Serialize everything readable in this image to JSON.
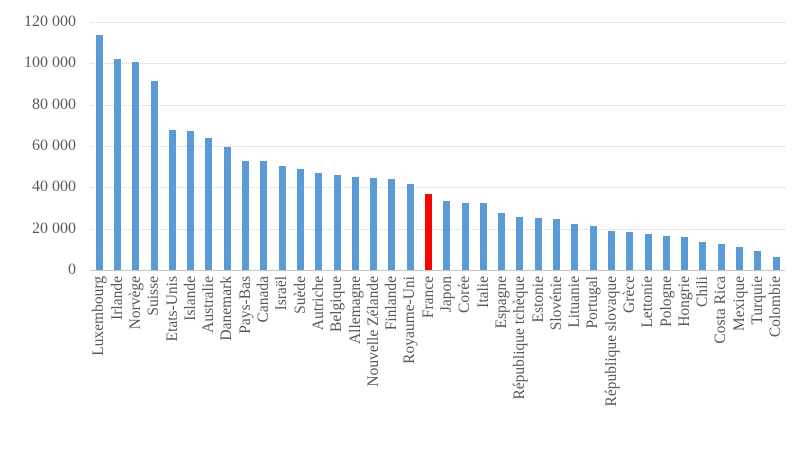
{
  "chart_data": {
    "type": "bar",
    "title": "",
    "xlabel": "",
    "ylabel": "",
    "legend": false,
    "grid": true,
    "background": "#FFFFFF",
    "text_color": "#595959",
    "gridline_color": "#D2D2D2",
    "axis_line_color": "#C9C9C9",
    "bar_color": "#5B9BD5",
    "highlight": {
      "category": "France",
      "color": "#FF0000"
    },
    "ylim": [
      0,
      120000
    ],
    "ytick_step": 20000,
    "ytick_labels": [
      "120 000",
      "100 000",
      "80 000",
      "60 000",
      "40 000",
      "20 000",
      "0"
    ],
    "categories": [
      "Luxembourg",
      "Irlande",
      "Norvège",
      "Suisse",
      "Etats-Unis",
      "Islande",
      "Australie",
      "Danemark",
      "Pays-Bas",
      "Canada",
      "Israël",
      "Suède",
      "Autriche",
      "Belgique",
      "Allemagne",
      "Nouvelle Zélande",
      "Finlande",
      "Royaume-Uni",
      "France",
      "Japon",
      "Corée",
      "Italie",
      "Espagne",
      "République tchèque",
      "Estonie",
      "Slovénie",
      "Lituanie",
      "Portugal",
      "République slovaque",
      "Grèce",
      "Lettonie",
      "Pologne",
      "Hongrie",
      "Chili",
      "Costa Rica",
      "Mexique",
      "Turquie",
      "Colombie"
    ],
    "values": [
      113700,
      102300,
      100700,
      91700,
      67600,
      67500,
      63900,
      59700,
      52600,
      52600,
      50200,
      49100,
      47000,
      45900,
      44900,
      44700,
      43800,
      41700,
      36700,
      33600,
      32500,
      32500,
      27600,
      25700,
      25000,
      24900,
      22500,
      21200,
      19100,
      18600,
      17500,
      16400,
      16100,
      13700,
      12400,
      11100,
      9400,
      6300
    ]
  }
}
